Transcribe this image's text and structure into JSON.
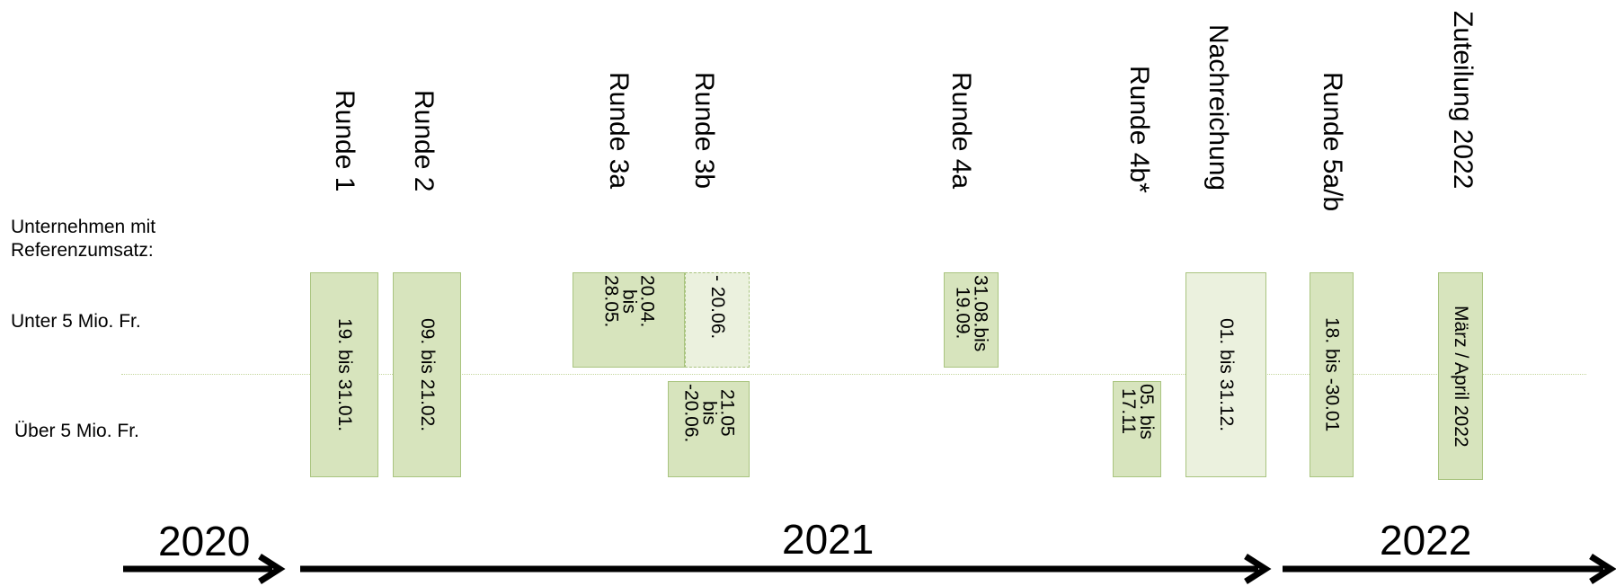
{
  "labels": {
    "group": "Unternehmen mit\nReferenzumsatz:",
    "under": "Unter 5 Mio. Fr.",
    "over": "Über 5 Mio. Fr."
  },
  "rounds": [
    "Runde 1",
    "Runde 2",
    "Runde 3a",
    "Runde 3b",
    "Runde 4a",
    "Runde 4b*",
    "Nachreichung",
    "Runde 5a/b",
    "Zuteilung 2022"
  ],
  "periods": {
    "r1": "19. bis 31.01.",
    "r2": "09. bis 21.02.",
    "r3a": "20.04.\nbis\n28.05.",
    "r3a_ext": "- 20.06.",
    "r3b": "21.05\nbis\n-20.06.",
    "r4a": "31.08.bis\n19.09.",
    "r4b": "05. bis\n17.11",
    "nach": "01. bis 31.12.",
    "r5": "18. bis -30.01",
    "zut": "März / April 2022"
  },
  "years": [
    "2020",
    "2021",
    "2022"
  ],
  "colors": {
    "box": "#d7e4bd",
    "box_light": "#ebf1de",
    "border": "#a9c47f",
    "arrow": "#000000"
  }
}
